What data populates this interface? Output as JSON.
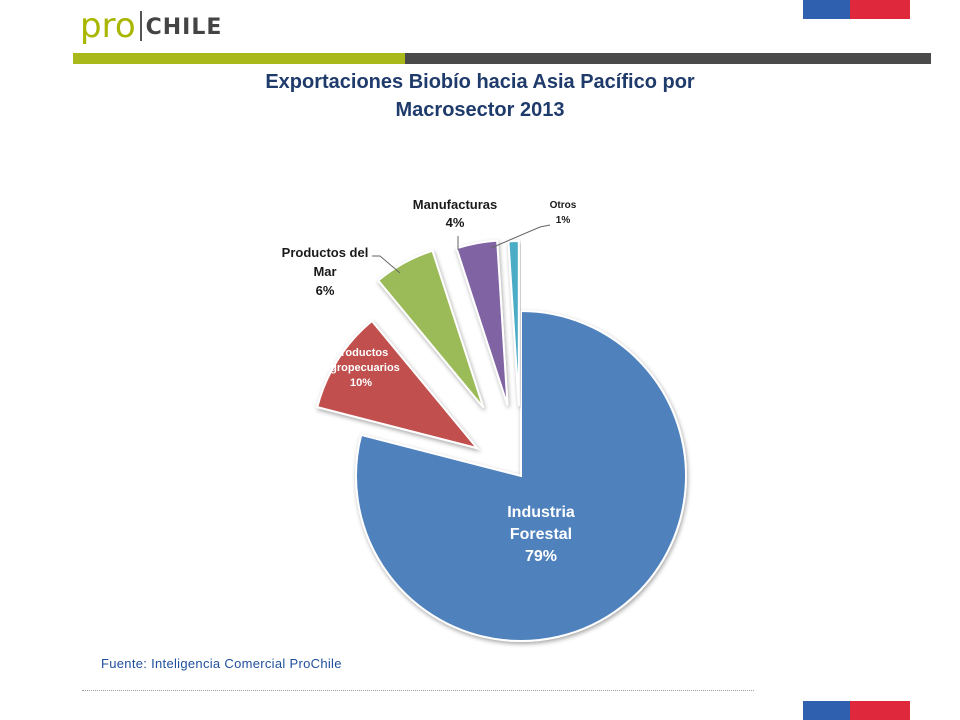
{
  "header": {
    "logo_pro": "pro",
    "logo_chile": "CHILE"
  },
  "colors": {
    "logo_green": "#a8b600",
    "bar_green": "#a9b81a",
    "bar_dark": "#4a4a4a",
    "flag_blue": "#2f60b0",
    "flag_red": "#e0283c",
    "title": "#1f3b6b"
  },
  "chart_data": {
    "type": "pie",
    "exploded": true,
    "title_lines": [
      "Exportaciones Biobío hacia Asia Pacífico por",
      "Macrosector 2013"
    ],
    "slices": [
      {
        "label_lines": [
          "Industria",
          "Forestal"
        ],
        "pct_label": "79%",
        "value": 79,
        "color": "#4f81bd"
      },
      {
        "label_lines": [
          "Productos",
          "Agropecuarios"
        ],
        "pct_label": "10%",
        "value": 10,
        "color": "#c0504d"
      },
      {
        "label_lines": [
          "Productos del",
          "Mar"
        ],
        "pct_label": "6%",
        "value": 6,
        "color": "#9bbb59"
      },
      {
        "label_lines": [
          "Manufacturas"
        ],
        "pct_label": "4%",
        "value": 4,
        "color": "#8064a2"
      },
      {
        "label_lines": [
          "Otros"
        ],
        "pct_label": "1%",
        "value": 1,
        "color": "#4bacc6"
      }
    ]
  },
  "footer": {
    "source": "Fuente: Inteligencia Comercial ProChile"
  }
}
